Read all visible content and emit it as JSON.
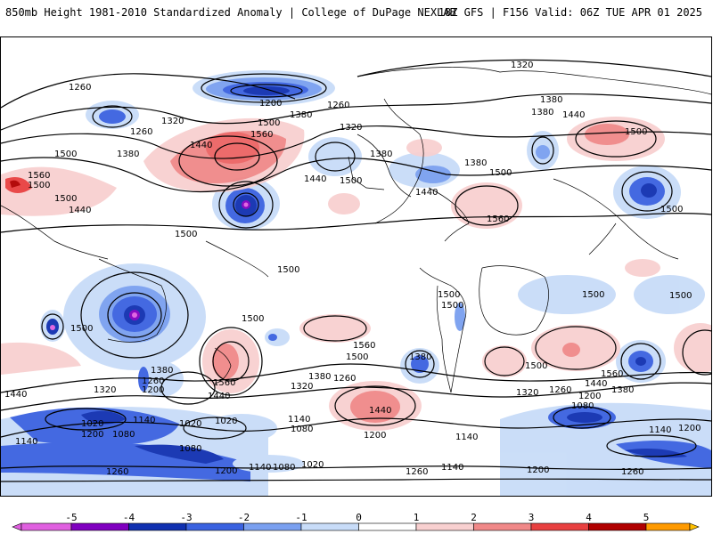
{
  "header": {
    "title": "850mb Height 1981-2010 Standardized Anomaly | College of DuPage NEXLAB",
    "valid": "18Z GFS | F156 Valid: 06Z TUE APR 01 2025"
  },
  "colorbar": {
    "ticks": [
      "-5",
      "-4",
      "-3",
      "-2",
      "-1",
      "0",
      "1",
      "2",
      "3",
      "4",
      "5"
    ],
    "colors": [
      "#e060e0",
      "#8000c0",
      "#1030b0",
      "#3a62e0",
      "#7aa0f0",
      "#c8dcf8",
      "#ffffff",
      "#f8d0d0",
      "#f08888",
      "#e84040",
      "#b00000",
      "#ff9a00",
      "#ffc000"
    ]
  },
  "contour_labels": [
    "1320",
    "1380",
    "1440",
    "1500",
    "1560",
    "1260",
    "1200",
    "1140",
    "1080",
    "1020"
  ],
  "map": {
    "contour_labels": {
      "l1320_top": "1320",
      "l1260_a": "1260",
      "l1200_a": "1200",
      "l1260_b": "1260",
      "l1320_a": "1320",
      "l1380_a": "1380",
      "l1440_a": "1440",
      "l1500_a": "1500",
      "l1560_a": "1560",
      "l1380_b": "1380",
      "l1320_b": "1320",
      "l1380_c": "1380",
      "l1440_b": "1440",
      "l1500_b": "1500",
      "l1380_d": "1380",
      "l1500_c": "1500",
      "l1560_b": "1560",
      "l1440_c": "1440",
      "l1380_e": "1380",
      "l1440_d": "1440",
      "l1500_d": "1500",
      "l1500_e": "1500",
      "l1500_f": "1500",
      "l1500_g": "1500",
      "l1500_h": "1500",
      "l1500_i": "1500",
      "l1500_j": "1500",
      "l1500_k": "1500",
      "l1560_c": "1560",
      "l1500_l": "1500",
      "l1560_d": "1560",
      "l1380_f": "1380",
      "l1260_c": "1260",
      "l1200_b": "1200",
      "l1320_c": "1320",
      "l1560_e": "1560",
      "l1440_e": "1440",
      "l1380_g": "1380",
      "l1320_d": "1320",
      "l1260_d": "1260",
      "l1380_h": "1380",
      "l1440_f": "1440",
      "l1500_m": "1500",
      "l1560_f": "1560",
      "l1440_g": "1440",
      "l1380_i": "1380",
      "l1320_e": "1320",
      "l1260_e": "1260",
      "l1200_c": "1200",
      "l1440_h": "1440",
      "l1320_f": "1320",
      "l1140_a": "1140",
      "l1080_a": "1080",
      "l1020_a": "1020",
      "l1140_b": "1140",
      "l1200_d": "1200",
      "l1140_c": "1140",
      "l1020_b": "1020",
      "l1080_b": "1080",
      "l1020_c": "1020",
      "l1140_d": "1140",
      "l1080_c": "1080",
      "l1200_e": "1200",
      "l1140_e": "1140",
      "l1080_d": "1080",
      "l1020_d": "1020",
      "l1200_f": "1200",
      "l1260_f": "1260",
      "l1140_f": "1140",
      "l1200_g": "1200",
      "l1260_g": "1260",
      "l1140_g": "1140",
      "l1200_h": "1200",
      "l1080_e": "1080",
      "l1140_h": "1140",
      "l1200_i": "1200",
      "l1260_h": "1260",
      "l1500_n": "1500",
      "l1440_i": "1440",
      "l1500_o": "1500",
      "l1200_j": "1200",
      "l1080_f": "1080"
    }
  }
}
